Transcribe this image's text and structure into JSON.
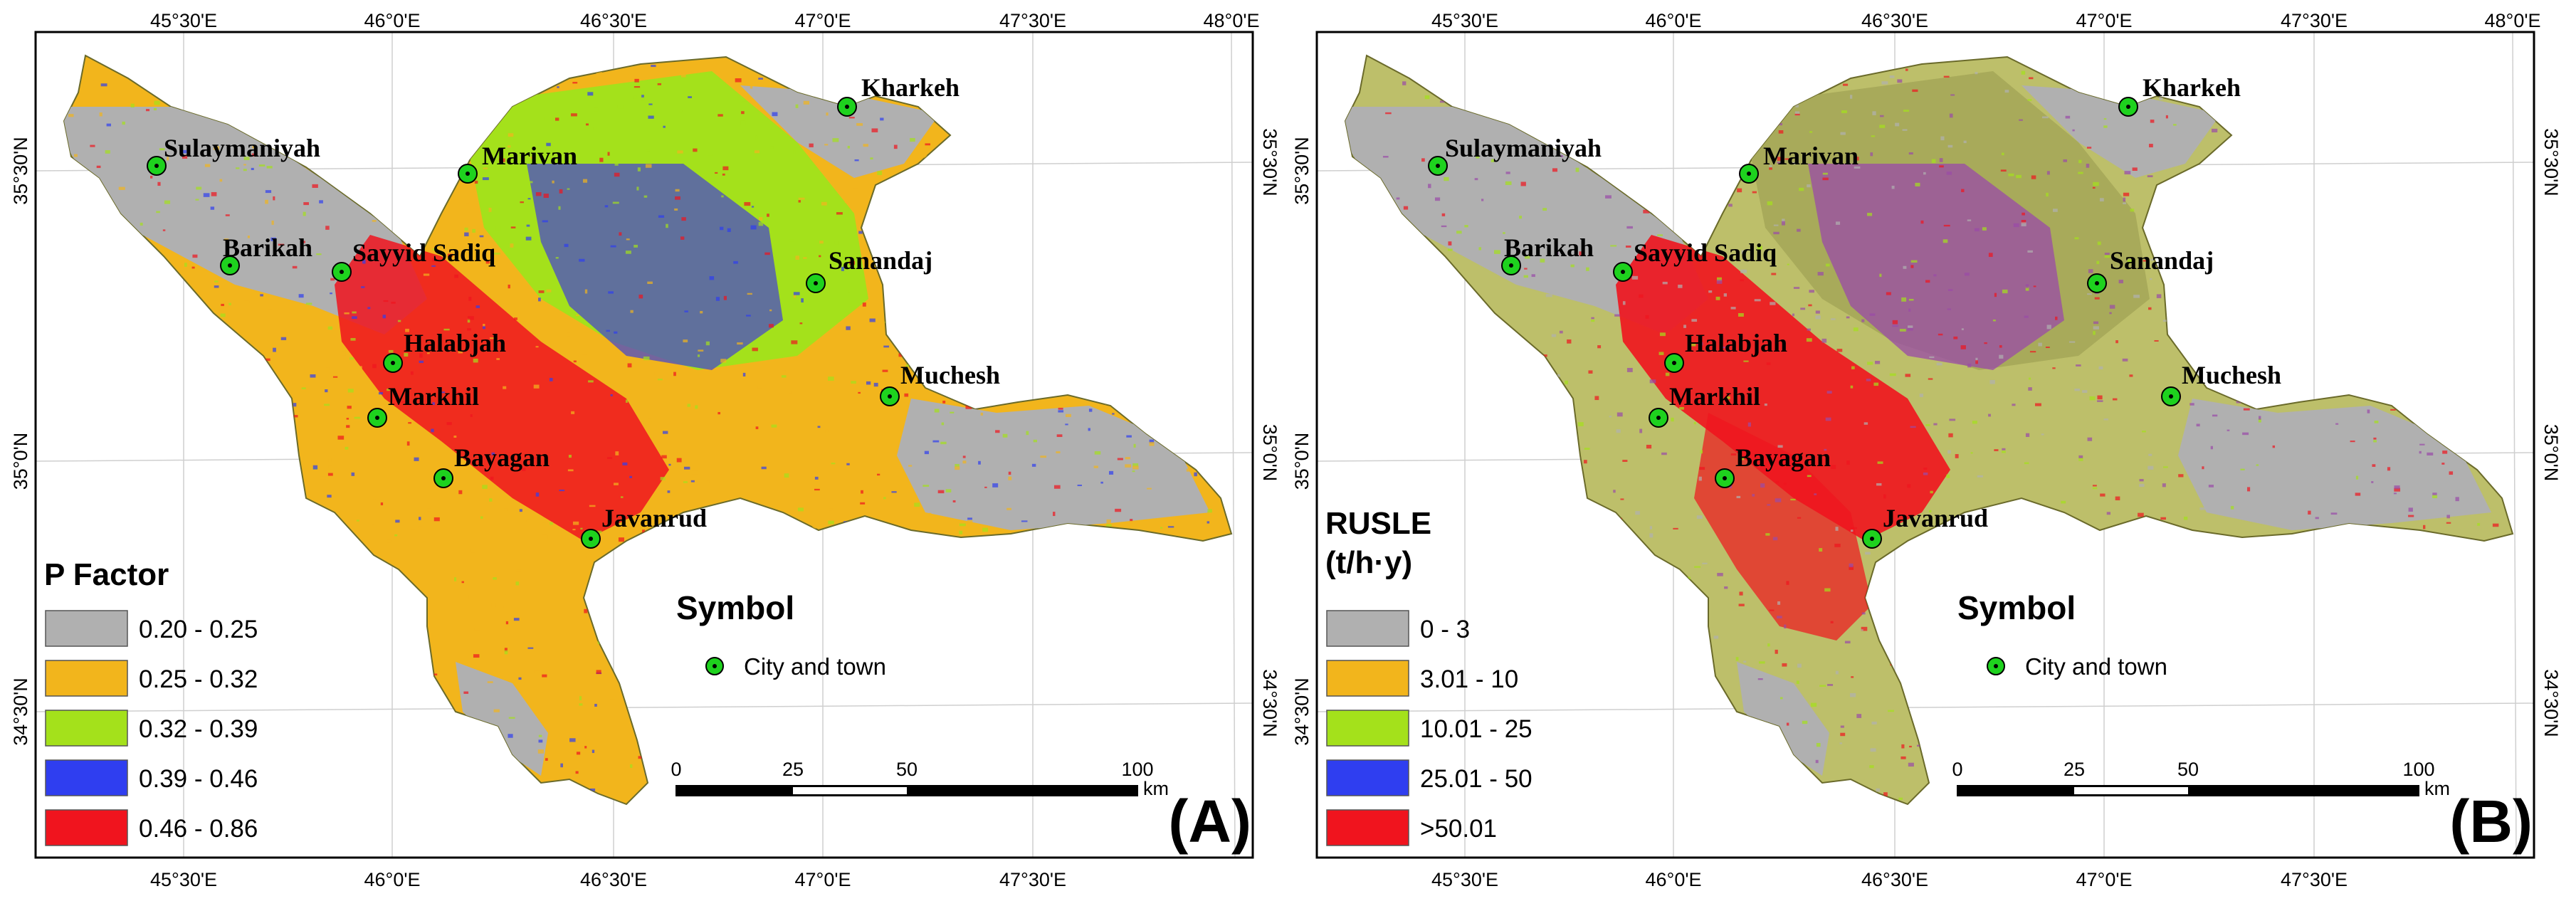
{
  "colors": {
    "gray": "#b0b0b0",
    "orange": "#f2b51c",
    "lime": "#a4e11b",
    "blue": "#2f3ef0",
    "red": "#f0141e",
    "olive": "#bdbf6a",
    "city": "#1ed21e",
    "frame": "#000000"
  },
  "coords": {
    "top": [
      "45°30'E",
      "46°0'E",
      "46°30'E",
      "47°0'E",
      "47°30'E",
      "48°0'E"
    ],
    "bottom": [
      "45°30'E",
      "46°0'E",
      "46°30'E",
      "47°0'E",
      "47°30'E"
    ],
    "left": [
      "35°30'N",
      "35°0'N",
      "34°30'N"
    ],
    "right": [
      "35°30'N",
      "35°0'N",
      "34°30'N"
    ]
  },
  "cities": [
    "Kharkeh",
    "Sulaymaniyah",
    "Marivan",
    "Barikah",
    "Sayyid Sadiq",
    "Sanandaj",
    "Halabjah",
    "Muchesh",
    "Markhil",
    "Bayagan",
    "Javanrud"
  ],
  "symbol": {
    "title": "Symbol",
    "item": "City and town"
  },
  "scale": {
    "ticks": [
      "0",
      "25",
      "50",
      "100"
    ],
    "unit": "km"
  },
  "panels": [
    {
      "label": "(A)",
      "legend_title": "P Factor",
      "legend_title2": "",
      "legend": [
        {
          "label": "0.20 - 0.25",
          "color": "#b0b0b0"
        },
        {
          "label": "0.25 - 0.32",
          "color": "#f2b51c"
        },
        {
          "label": "0.32 - 0.39",
          "color": "#a4e11b"
        },
        {
          "label": "0.39 - 0.46",
          "color": "#2f3ef0"
        },
        {
          "label": "0.46 - 0.86",
          "color": "#f0141e"
        }
      ]
    },
    {
      "label": "(B)",
      "legend_title": "RUSLE",
      "legend_title2": "(t/h·y)",
      "legend": [
        {
          "label": "0 - 3",
          "color": "#b0b0b0"
        },
        {
          "label": "3.01 - 10",
          "color": "#f2b51c"
        },
        {
          "label": "10.01 - 25",
          "color": "#a4e11b"
        },
        {
          "label": "25.01 - 50",
          "color": "#2f3ef0"
        },
        {
          "label": ">50.01",
          "color": "#f0141e"
        }
      ]
    }
  ]
}
